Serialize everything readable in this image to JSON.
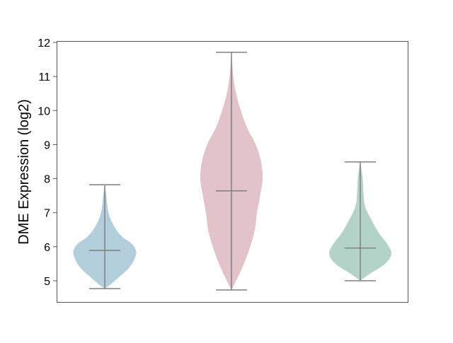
{
  "chart_data": {
    "type": "violin",
    "title": "",
    "xlabel": "",
    "ylabel": "DME Expression (log2)",
    "ylim": [
      4.4,
      12.1
    ],
    "yticks": [
      "5",
      "6",
      "7",
      "8",
      "9",
      "10",
      "11",
      "12"
    ],
    "grid": false,
    "legend": "none",
    "series": [
      {
        "color": "#b3cedb",
        "min": 4.77,
        "median": 5.89,
        "max": 7.82,
        "density": [
          [
            4.77,
            0
          ],
          [
            4.9,
            0.2
          ],
          [
            5.1,
            0.45
          ],
          [
            5.4,
            0.8
          ],
          [
            5.7,
            0.98
          ],
          [
            5.9,
            1.0
          ],
          [
            6.1,
            0.85
          ],
          [
            6.3,
            0.55
          ],
          [
            6.6,
            0.3
          ],
          [
            7.0,
            0.12
          ],
          [
            7.5,
            0.05
          ],
          [
            7.82,
            0
          ]
        ]
      },
      {
        "color": "#e2c3ca",
        "min": 4.73,
        "median": 7.64,
        "max": 11.71,
        "density": [
          [
            4.73,
            0
          ],
          [
            5.0,
            0.15
          ],
          [
            5.5,
            0.4
          ],
          [
            6.0,
            0.6
          ],
          [
            6.5,
            0.75
          ],
          [
            7.0,
            0.82
          ],
          [
            7.5,
            0.92
          ],
          [
            8.0,
            1.0
          ],
          [
            8.5,
            0.95
          ],
          [
            9.0,
            0.78
          ],
          [
            9.5,
            0.5
          ],
          [
            10.0,
            0.3
          ],
          [
            10.5,
            0.15
          ],
          [
            11.0,
            0.06
          ],
          [
            11.71,
            0
          ]
        ]
      },
      {
        "color": "#b3d3c8",
        "min": 5.0,
        "median": 5.96,
        "max": 8.49,
        "density": [
          [
            5.0,
            0
          ],
          [
            5.2,
            0.3
          ],
          [
            5.5,
            0.8
          ],
          [
            5.8,
            1.0
          ],
          [
            6.1,
            0.85
          ],
          [
            6.4,
            0.6
          ],
          [
            6.8,
            0.35
          ],
          [
            7.2,
            0.15
          ],
          [
            7.6,
            0.1
          ],
          [
            8.0,
            0.08
          ],
          [
            8.49,
            0
          ]
        ]
      }
    ]
  }
}
